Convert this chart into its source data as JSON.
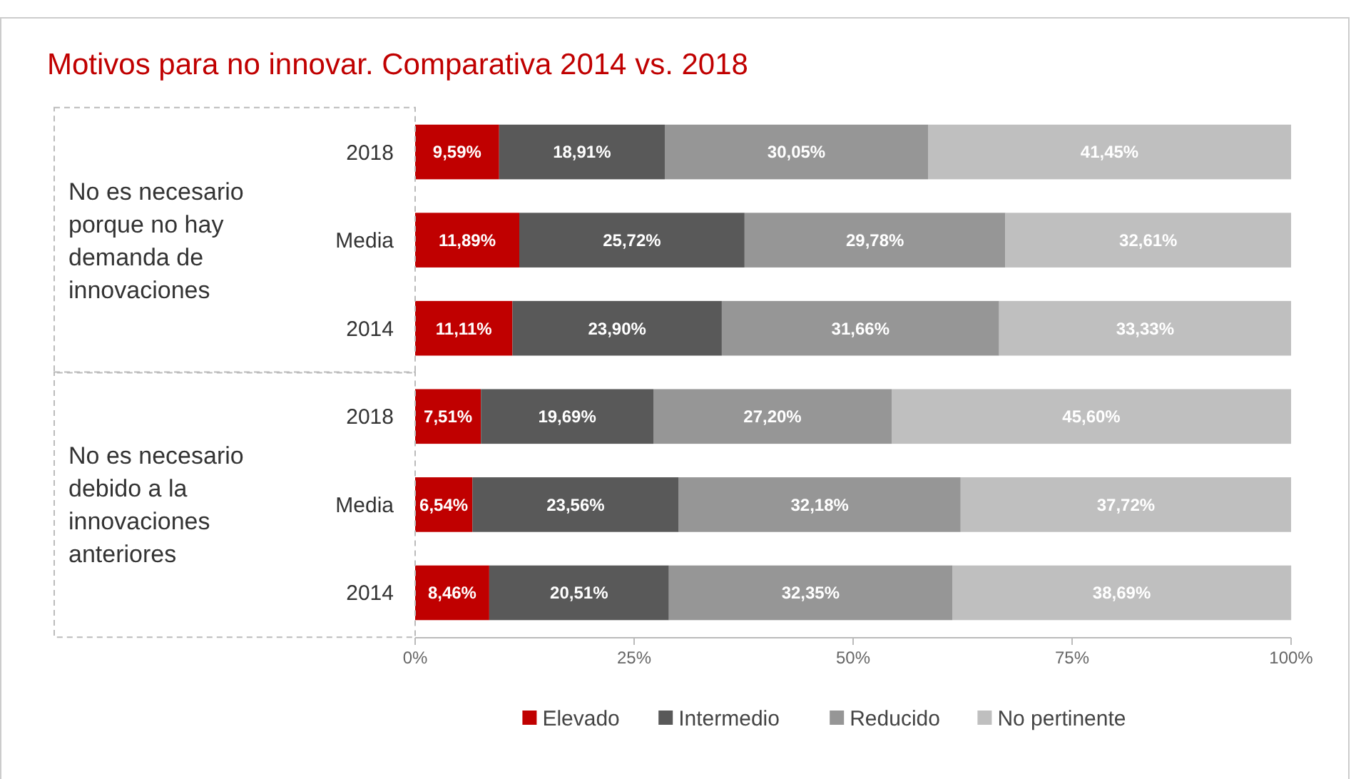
{
  "chart_data": {
    "type": "bar",
    "orientation": "horizontal",
    "stacked": true,
    "title": "Motivos para no innovar. Comparativa 2014 vs. 2018",
    "categories": [
      "2018",
      "Media",
      "2014",
      "2018",
      "Media",
      "2014"
    ],
    "series": [
      {
        "name": "Elevado",
        "color": "#c00000",
        "values": [
          9.59,
          11.89,
          11.11,
          7.51,
          6.54,
          8.46
        ],
        "value_labels": [
          "9,59%",
          "11,89%",
          "11,11%",
          "7,51%",
          "6,54%",
          "8,46%"
        ]
      },
      {
        "name": "Intermedio",
        "color": "#595959",
        "values": [
          18.91,
          25.72,
          23.9,
          19.69,
          23.56,
          20.51
        ],
        "value_labels": [
          "18,91%",
          "25,72%",
          "23,90%",
          "19,69%",
          "23,56%",
          "20,51%"
        ]
      },
      {
        "name": "Reducido",
        "color": "#969696",
        "values": [
          30.05,
          29.78,
          31.66,
          27.2,
          32.18,
          32.35
        ],
        "value_labels": [
          "30,05%",
          "29,78%",
          "31,66%",
          "27,20%",
          "32,18%",
          "32,35%"
        ]
      },
      {
        "name": "No pertinente",
        "color": "#bfbfbf",
        "values": [
          41.45,
          32.61,
          33.33,
          45.6,
          37.72,
          38.69
        ],
        "value_labels": [
          "41,45%",
          "32,61%",
          "33,33%",
          "45,60%",
          "37,72%",
          "38,69%"
        ]
      }
    ],
    "xlim": [
      0,
      100
    ],
    "xticks": [
      {
        "value": 0,
        "label": "0%"
      },
      {
        "value": 25,
        "label": "25%"
      },
      {
        "value": 50,
        "label": "50%"
      },
      {
        "value": 75,
        "label": "75%"
      },
      {
        "value": 100,
        "label": "100%"
      }
    ],
    "grid": false,
    "legend": "bottom",
    "annotations": [
      "No es necesario porque no hay demanda de innovaciones",
      "No es necesario debido a la innovaciones anteriores"
    ]
  }
}
